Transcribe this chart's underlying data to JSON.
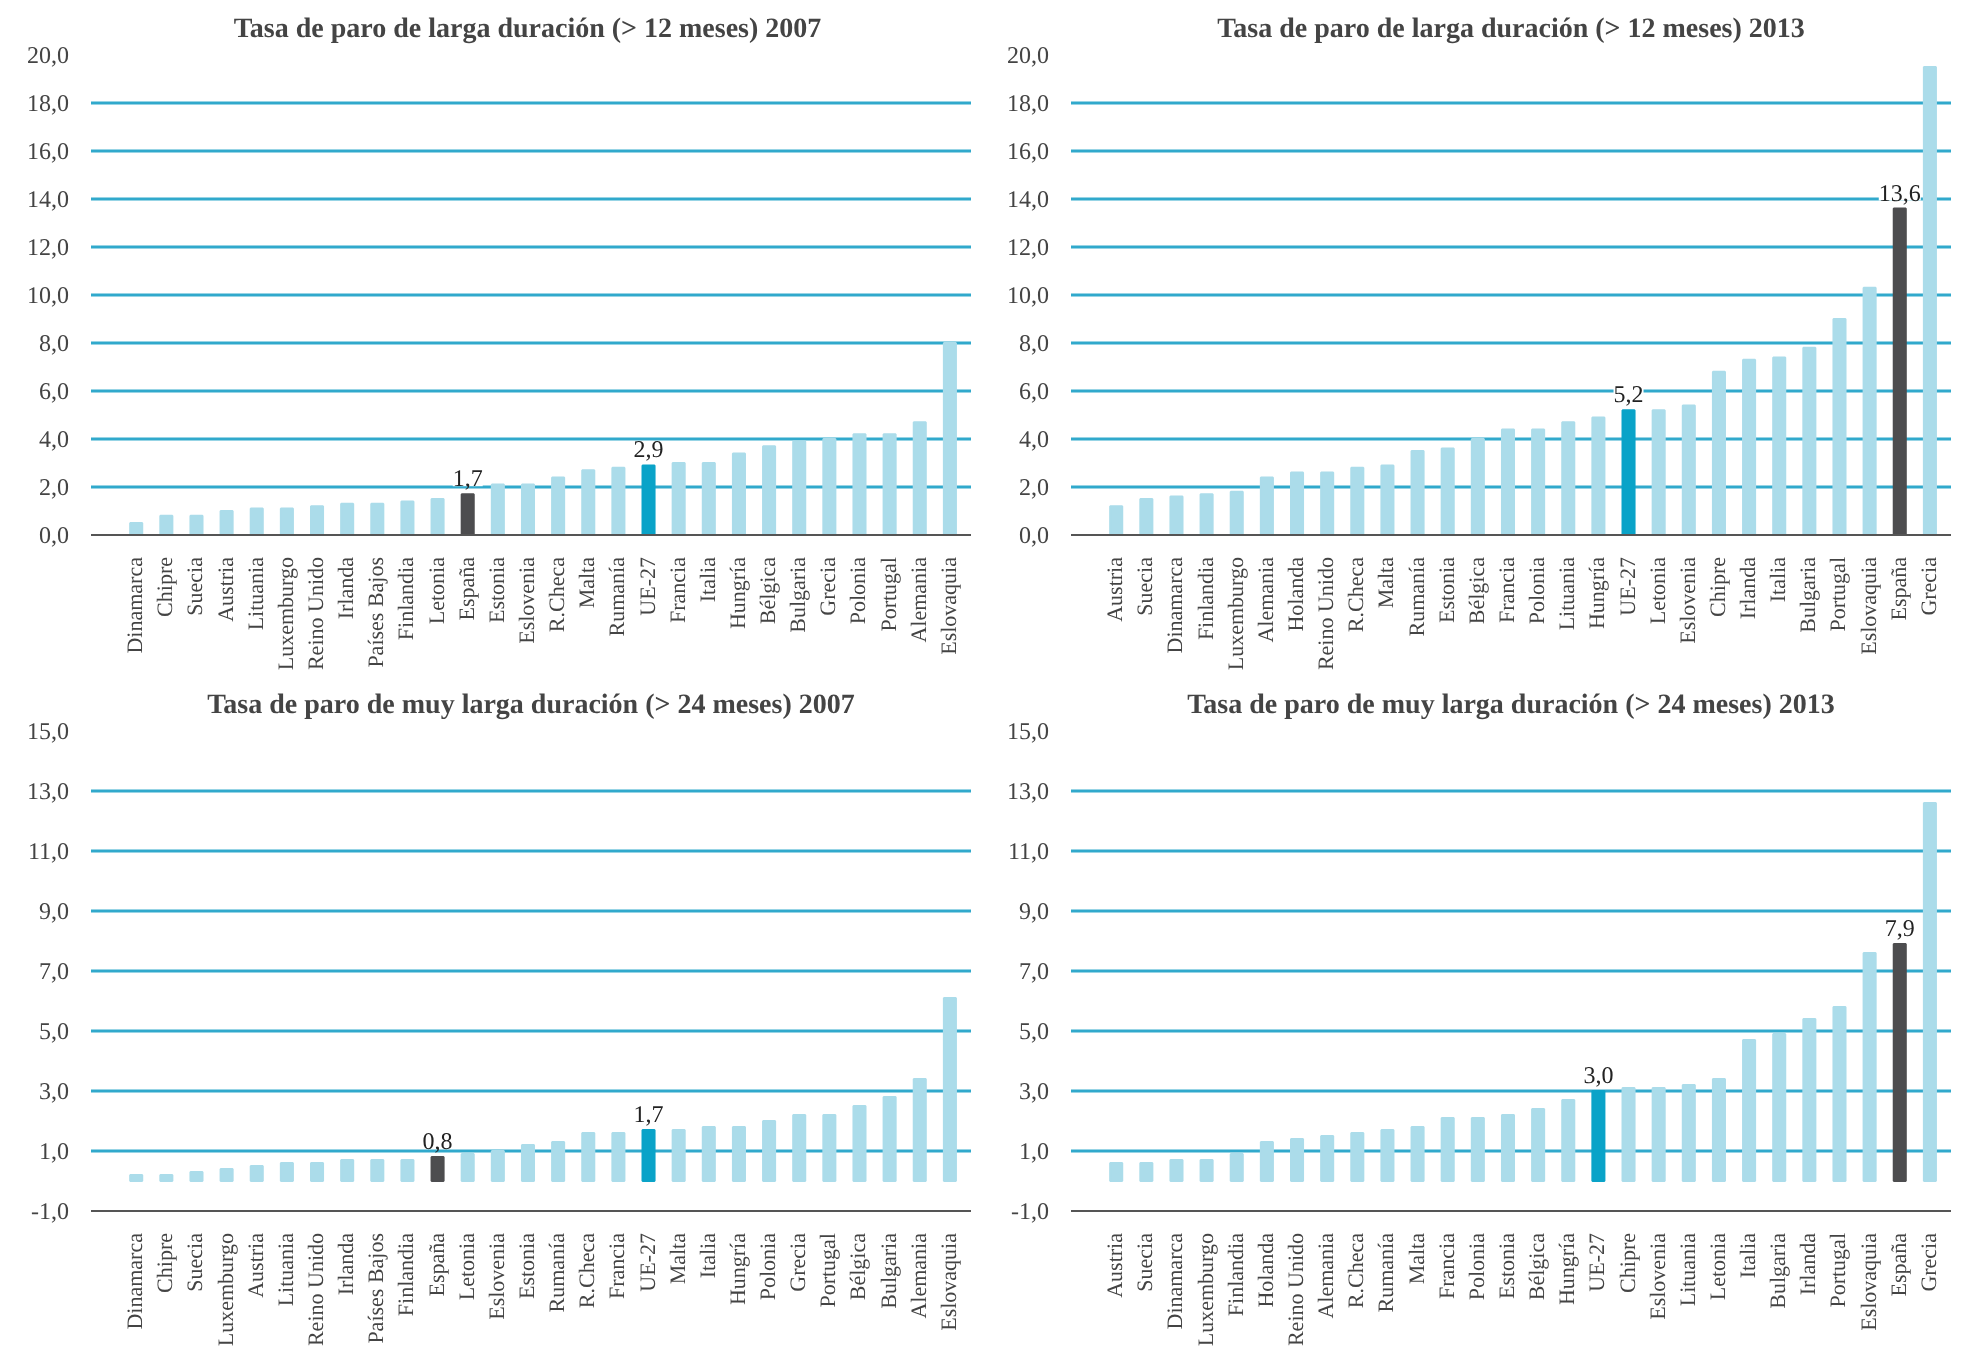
{
  "chart_data": [
    {
      "type": "bar",
      "title": "Tasa de paro de larga duración (> 12  meses) 2007",
      "grid": "y",
      "categories": [
        "Dinamarca",
        "Chipre",
        "Suecia",
        "Austria",
        "Lituania",
        "Luxemburgo",
        "Reino Unido",
        "Irlanda",
        "Países Bajos",
        "Finlandia",
        "Letonia",
        "España",
        "Estonia",
        "Eslovenia",
        "R.Checa",
        "Malta",
        "Rumanía",
        "UE-27",
        "Francia",
        "Italia",
        "Hungría",
        "Bélgica",
        "Bulgaria",
        "Grecia",
        "Polonia",
        "Portugal",
        "Alemania",
        "Eslovaquia"
      ],
      "values": [
        0.5,
        0.8,
        0.8,
        1.0,
        1.1,
        1.1,
        1.2,
        1.3,
        1.3,
        1.4,
        1.5,
        1.7,
        2.1,
        2.1,
        2.4,
        2.7,
        2.8,
        2.9,
        3.0,
        3.0,
        3.4,
        3.7,
        3.9,
        4.0,
        4.2,
        4.2,
        4.7,
        8.0
      ],
      "colors": [
        "#abdcea",
        "#abdcea",
        "#abdcea",
        "#abdcea",
        "#abdcea",
        "#abdcea",
        "#abdcea",
        "#abdcea",
        "#abdcea",
        "#abdcea",
        "#abdcea",
        "#4d4d4f",
        "#abdcea",
        "#abdcea",
        "#abdcea",
        "#abdcea",
        "#abdcea",
        "#0aa3c8",
        "#abdcea",
        "#abdcea",
        "#abdcea",
        "#abdcea",
        "#abdcea",
        "#abdcea",
        "#abdcea",
        "#abdcea",
        "#abdcea",
        "#abdcea"
      ],
      "value_labels": [
        null,
        null,
        null,
        null,
        null,
        null,
        null,
        null,
        null,
        null,
        null,
        "1,7",
        null,
        null,
        null,
        null,
        null,
        "2,9",
        null,
        null,
        null,
        null,
        null,
        null,
        null,
        null,
        null,
        null
      ],
      "ylim": [
        0,
        20
      ],
      "yticks": [
        {
          "value": 0,
          "label": "0,0"
        },
        {
          "value": 2,
          "label": "2,0"
        },
        {
          "value": 4,
          "label": "4,0"
        },
        {
          "value": 6,
          "label": "6,0"
        },
        {
          "value": 8,
          "label": "8,0"
        },
        {
          "value": 10,
          "label": "10,0"
        },
        {
          "value": 12,
          "label": "12,0"
        },
        {
          "value": 14,
          "label": "14,0"
        },
        {
          "value": 16,
          "label": "16,0"
        },
        {
          "value": 18,
          "label": "18,0"
        },
        {
          "value": 20,
          "label": "20,0"
        }
      ]
    },
    {
      "type": "bar",
      "title": "Tasa de paro de larga duración (> 12 meses) 2013",
      "grid": "y",
      "categories": [
        "Austria",
        "Suecia",
        "Dinamarca",
        "Finlandia",
        "Luxemburgo",
        "Alemania",
        "Holanda",
        "Reino Unido",
        "R.Checa",
        "Malta",
        "Rumanía",
        "Estonia",
        "Bélgica",
        "Francia",
        "Polonia",
        "Lituania",
        "Hungría",
        "UE-27",
        "Letonia",
        "Eslovenia",
        "Chipre",
        "Irlanda",
        "Italia",
        "Bulgaria",
        "Portugal",
        "Eslovaquia",
        "España",
        "Grecia"
      ],
      "values": [
        1.2,
        1.5,
        1.6,
        1.7,
        1.8,
        2.4,
        2.6,
        2.6,
        2.8,
        2.9,
        3.5,
        3.6,
        4.0,
        4.4,
        4.4,
        4.7,
        4.9,
        5.2,
        5.2,
        5.4,
        6.8,
        7.3,
        7.4,
        7.8,
        9.0,
        10.3,
        13.6,
        19.5
      ],
      "colors": [
        "#abdcea",
        "#abdcea",
        "#abdcea",
        "#abdcea",
        "#abdcea",
        "#abdcea",
        "#abdcea",
        "#abdcea",
        "#abdcea",
        "#abdcea",
        "#abdcea",
        "#abdcea",
        "#abdcea",
        "#abdcea",
        "#abdcea",
        "#abdcea",
        "#abdcea",
        "#0aa3c8",
        "#abdcea",
        "#abdcea",
        "#abdcea",
        "#abdcea",
        "#abdcea",
        "#abdcea",
        "#abdcea",
        "#abdcea",
        "#4d4d4f",
        "#abdcea"
      ],
      "value_labels": [
        null,
        null,
        null,
        null,
        null,
        null,
        null,
        null,
        null,
        null,
        null,
        null,
        null,
        null,
        null,
        null,
        null,
        "5,2",
        null,
        null,
        null,
        null,
        null,
        null,
        null,
        null,
        "13,6",
        null
      ],
      "ylim": [
        0,
        20
      ],
      "yticks": [
        {
          "value": 0,
          "label": "0,0"
        },
        {
          "value": 2,
          "label": "2,0"
        },
        {
          "value": 4,
          "label": "4,0"
        },
        {
          "value": 6,
          "label": "6,0"
        },
        {
          "value": 8,
          "label": "8,0"
        },
        {
          "value": 10,
          "label": "10,0"
        },
        {
          "value": 12,
          "label": "12,0"
        },
        {
          "value": 14,
          "label": "14,0"
        },
        {
          "value": 16,
          "label": "16,0"
        },
        {
          "value": 18,
          "label": "18,0"
        },
        {
          "value": 20,
          "label": "20,0"
        }
      ]
    },
    {
      "type": "bar",
      "title": "Tasa de paro de muy larga duración (> 24 meses) 2007",
      "grid": "y",
      "categories": [
        "Dinamarca",
        "Chipre",
        "Suecia",
        "Luxemburgo",
        "Austria",
        "Lituania",
        "Reino Unido",
        "Irlanda",
        "Países Bajos",
        "Finlandia",
        "España",
        "Letonia",
        "Eslovenia",
        "Estonia",
        "Rumanía",
        "R.Checa",
        "Francia",
        "UE-27",
        "Malta",
        "Italia",
        "Hungría",
        "Polonia",
        "Grecia",
        "Portugal",
        "Bélgica",
        "Bulgaria",
        "Alemania",
        "Eslovaquia"
      ],
      "values": [
        0.2,
        0.2,
        0.3,
        0.4,
        0.5,
        0.6,
        0.6,
        0.7,
        0.7,
        0.7,
        0.8,
        0.9,
        1.0,
        1.2,
        1.3,
        1.6,
        1.6,
        1.7,
        1.7,
        1.8,
        1.8,
        2.0,
        2.2,
        2.2,
        2.5,
        2.8,
        3.4,
        6.1
      ],
      "colors": [
        "#abdcea",
        "#abdcea",
        "#abdcea",
        "#abdcea",
        "#abdcea",
        "#abdcea",
        "#abdcea",
        "#abdcea",
        "#abdcea",
        "#abdcea",
        "#4d4d4f",
        "#abdcea",
        "#abdcea",
        "#abdcea",
        "#abdcea",
        "#abdcea",
        "#abdcea",
        "#0aa3c8",
        "#abdcea",
        "#abdcea",
        "#abdcea",
        "#abdcea",
        "#abdcea",
        "#abdcea",
        "#abdcea",
        "#abdcea",
        "#abdcea",
        "#abdcea"
      ],
      "value_labels": [
        null,
        null,
        null,
        null,
        null,
        null,
        null,
        null,
        null,
        null,
        "0,8",
        null,
        null,
        null,
        null,
        null,
        null,
        "1,7",
        null,
        null,
        null,
        null,
        null,
        null,
        null,
        null,
        null,
        null
      ],
      "ylim": [
        -1,
        15
      ],
      "yticks": [
        {
          "value": -1,
          "label": "-1,0"
        },
        {
          "value": 1,
          "label": "1,0"
        },
        {
          "value": 3,
          "label": "3,0"
        },
        {
          "value": 5,
          "label": "5,0"
        },
        {
          "value": 7,
          "label": "7,0"
        },
        {
          "value": 9,
          "label": "9,0"
        },
        {
          "value": 11,
          "label": "11,0"
        },
        {
          "value": 13,
          "label": "13,0"
        },
        {
          "value": 15,
          "label": "15,0"
        }
      ]
    },
    {
      "type": "bar",
      "title": "Tasa de paro de muy larga duración (> 24 meses) 2013",
      "grid": "y",
      "categories": [
        "Austria",
        "Suecia",
        "Dinamarca",
        "Luxemburgo",
        "Finlandia",
        "Holanda",
        "Reino Unido",
        "Alemania",
        "R.Checa",
        "Rumanía",
        "Malta",
        "Francia",
        "Polonia",
        "Estonia",
        "Bélgica",
        "Hungría",
        "UE-27",
        "Chipre",
        "Eslovenia",
        "Lituania",
        "Letonia",
        "Italia",
        "Bulgaria",
        "Irlanda",
        "Portugal",
        "Eslovaquia",
        "España",
        "Grecia"
      ],
      "values": [
        0.6,
        0.6,
        0.7,
        0.7,
        0.9,
        1.3,
        1.4,
        1.5,
        1.6,
        1.7,
        1.8,
        2.1,
        2.1,
        2.2,
        2.4,
        2.7,
        3.0,
        3.1,
        3.1,
        3.2,
        3.4,
        4.7,
        4.9,
        5.4,
        5.8,
        7.6,
        7.9,
        12.6
      ],
      "colors": [
        "#abdcea",
        "#abdcea",
        "#abdcea",
        "#abdcea",
        "#abdcea",
        "#abdcea",
        "#abdcea",
        "#abdcea",
        "#abdcea",
        "#abdcea",
        "#abdcea",
        "#abdcea",
        "#abdcea",
        "#abdcea",
        "#abdcea",
        "#abdcea",
        "#0aa3c8",
        "#abdcea",
        "#abdcea",
        "#abdcea",
        "#abdcea",
        "#abdcea",
        "#abdcea",
        "#abdcea",
        "#abdcea",
        "#abdcea",
        "#4d4d4f",
        "#abdcea"
      ],
      "value_labels": [
        null,
        null,
        null,
        null,
        null,
        null,
        null,
        null,
        null,
        null,
        null,
        null,
        null,
        null,
        null,
        null,
        "3,0",
        null,
        null,
        null,
        null,
        null,
        null,
        null,
        null,
        null,
        "7,9",
        null
      ],
      "ylim": [
        -1,
        15
      ],
      "yticks": [
        {
          "value": -1,
          "label": "-1,0"
        },
        {
          "value": 1,
          "label": "1,0"
        },
        {
          "value": 3,
          "label": "3,0"
        },
        {
          "value": 5,
          "label": "5,0"
        },
        {
          "value": 7,
          "label": "7,0"
        },
        {
          "value": 9,
          "label": "9,0"
        },
        {
          "value": 11,
          "label": "11,0"
        },
        {
          "value": 13,
          "label": "13,0"
        },
        {
          "value": 15,
          "label": "15,0"
        }
      ]
    }
  ]
}
